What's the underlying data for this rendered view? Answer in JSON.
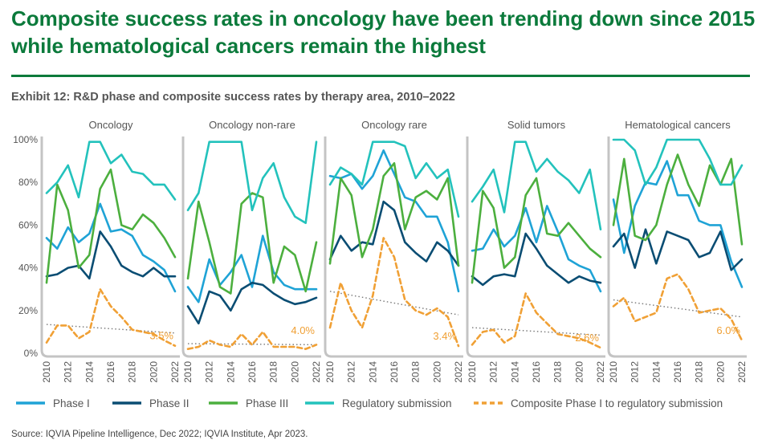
{
  "headline": "Composite success rates in oncology have been trending down since 2015 while hematological cancers remain the highest",
  "exhibit_title": "Exhibit 12: R&D phase and composite success rates by therapy area, 2010–2022",
  "source": "Source: IQVIA Pipeline Intelligence, Dec 2022; IQVIA Institute, Apr 2023.",
  "colors": {
    "phase1": "#1fa3d6",
    "phase2": "#0a4d73",
    "phase3": "#4caf3e",
    "regulatory": "#23c2bc",
    "composite": "#f0a035",
    "trend": "#777777",
    "panel_border": "#c4c4c4",
    "axis_text": "#555555"
  },
  "chart_data": {
    "type": "line",
    "x": [
      2010,
      2011,
      2012,
      2013,
      2014,
      2015,
      2016,
      2017,
      2018,
      2019,
      2020,
      2021,
      2022
    ],
    "x_tick_labels": [
      "2010",
      "2012",
      "2014",
      "2016",
      "2018",
      "2020",
      "2022"
    ],
    "y_tick_labels": [
      "100%",
      "80%",
      "60%",
      "40%",
      "20%",
      "0%"
    ],
    "ylim": [
      0,
      100
    ],
    "legend_position": "bottom",
    "legend": [
      {
        "key": "phase1",
        "label": "Phase I",
        "style": "solid"
      },
      {
        "key": "phase2",
        "label": "Phase II",
        "style": "solid"
      },
      {
        "key": "phase3",
        "label": "Phase III",
        "style": "solid"
      },
      {
        "key": "regulatory",
        "label": "Regulatory submission",
        "style": "solid"
      },
      {
        "key": "composite",
        "label": "Composite Phase I to regulatory submission",
        "style": "dashed"
      }
    ],
    "panels": [
      {
        "title": "Oncology",
        "annotation": "3.5%",
        "trend": [
          13.5,
          9.5
        ],
        "series": {
          "phase1": [
            54,
            49,
            59,
            52,
            56,
            70,
            57,
            58,
            55,
            46,
            43,
            39,
            29
          ],
          "phase2": [
            36,
            37,
            40,
            41,
            35,
            57,
            50,
            41,
            38,
            36,
            40,
            36,
            36
          ],
          "phase3": [
            33,
            79,
            67,
            40,
            46,
            77,
            86,
            60,
            58,
            65,
            61,
            54,
            45
          ],
          "regulatory": [
            75,
            80,
            88,
            73,
            99,
            99,
            89,
            93,
            85,
            84,
            79,
            79,
            72
          ],
          "composite": [
            5,
            13,
            13,
            7,
            10,
            30,
            22,
            17,
            11,
            10,
            9,
            6,
            3.5
          ]
        }
      },
      {
        "title": "Oncology non-rare",
        "annotation": "4.0%",
        "trend": [
          4.5,
          4.0
        ],
        "series": {
          "phase1": [
            31,
            24,
            44,
            32,
            38,
            46,
            31,
            55,
            38,
            32,
            30,
            30,
            30
          ],
          "phase2": [
            22,
            14,
            29,
            27,
            20,
            30,
            33,
            32,
            28,
            25,
            23,
            24,
            26
          ],
          "phase3": [
            35,
            71,
            52,
            31,
            28,
            70,
            75,
            73,
            33,
            50,
            46,
            29,
            52
          ],
          "regulatory": [
            67,
            75,
            99,
            99,
            99,
            99,
            67,
            82,
            89,
            73,
            64,
            61,
            99
          ],
          "composite": [
            2,
            3,
            6,
            4,
            3,
            9,
            4,
            10,
            3,
            3,
            3,
            2,
            4.0
          ]
        }
      },
      {
        "title": "Oncology rare",
        "annotation": "3.4%",
        "trend": [
          29,
          18
        ],
        "series": {
          "phase1": [
            83,
            82,
            84,
            77,
            83,
            95,
            84,
            73,
            71,
            64,
            64,
            52,
            29
          ],
          "phase2": [
            44,
            55,
            48,
            52,
            51,
            71,
            67,
            52,
            47,
            43,
            52,
            48,
            41
          ],
          "phase3": [
            42,
            82,
            74,
            45,
            58,
            83,
            89,
            58,
            73,
            76,
            72,
            82,
            41
          ],
          "regulatory": [
            79,
            87,
            84,
            79,
            99,
            99,
            99,
            97,
            82,
            89,
            82,
            86,
            64
          ],
          "composite": [
            12,
            33,
            20,
            12,
            27,
            54,
            45,
            25,
            20,
            18,
            21,
            17,
            3.4
          ]
        }
      },
      {
        "title": "Solid tumors",
        "annotation": "2.6%",
        "trend": [
          12,
          8.5
        ],
        "series": {
          "phase1": [
            48,
            49,
            58,
            50,
            55,
            68,
            52,
            69,
            57,
            44,
            41,
            39,
            29
          ],
          "phase2": [
            36,
            32,
            36,
            37,
            36,
            56,
            49,
            41,
            37,
            33,
            36,
            34,
            33
          ],
          "phase3": [
            33,
            76,
            68,
            40,
            45,
            74,
            82,
            56,
            55,
            61,
            55,
            49,
            45
          ],
          "regulatory": [
            71,
            78,
            86,
            66,
            99,
            99,
            85,
            91,
            85,
            81,
            75,
            86,
            58
          ],
          "composite": [
            4,
            10,
            11,
            5,
            8,
            28,
            19,
            14,
            9,
            8,
            7,
            5,
            2.6
          ]
        }
      },
      {
        "title": "Hematological cancers",
        "annotation": "6.0%",
        "trend": [
          25,
          17
        ],
        "series": {
          "phase1": [
            72,
            47,
            69,
            80,
            79,
            90,
            74,
            74,
            62,
            60,
            60,
            43,
            31
          ],
          "phase2": [
            50,
            56,
            40,
            58,
            42,
            57,
            55,
            53,
            45,
            47,
            57,
            39,
            44
          ],
          "phase3": [
            60,
            91,
            55,
            53,
            60,
            79,
            93,
            79,
            69,
            88,
            79,
            91,
            51
          ],
          "regulatory": [
            100,
            100,
            95,
            79,
            87,
            100,
            100,
            100,
            100,
            91,
            79,
            79,
            88
          ],
          "composite": [
            22,
            26,
            15,
            17,
            19,
            35,
            37,
            30,
            19,
            20,
            21,
            16,
            6.0
          ]
        }
      }
    ]
  }
}
